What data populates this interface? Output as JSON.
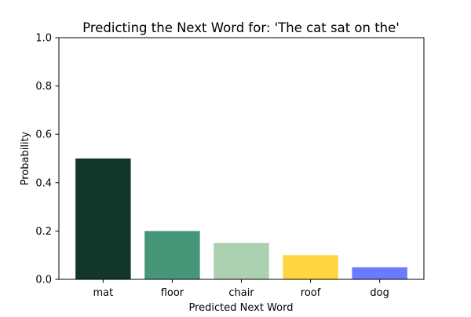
{
  "chart_data": {
    "type": "bar",
    "title": "Predicting the Next Word for: 'The cat sat on the'",
    "xlabel": "Predicted Next Word",
    "ylabel": "Probability",
    "categories": [
      "mat",
      "floor",
      "chair",
      "roof",
      "dog"
    ],
    "values": [
      0.5,
      0.2,
      0.15,
      0.1,
      0.05
    ],
    "colors": [
      "#12372a",
      "#46967a",
      "#abd1b0",
      "#ffd641",
      "#6b7bff"
    ],
    "ylim": [
      0,
      1.0
    ],
    "yticks": [
      "0.0",
      "0.2",
      "0.4",
      "0.6",
      "0.8",
      "1.0"
    ],
    "grid": false,
    "legend": "none"
  }
}
